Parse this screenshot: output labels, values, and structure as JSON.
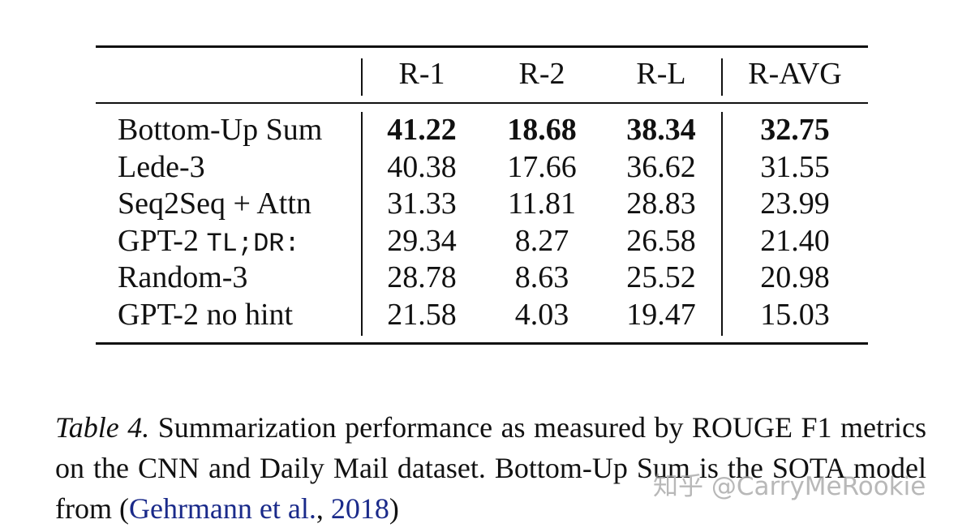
{
  "table": {
    "header": [
      "R-1",
      "R-2",
      "R-L",
      "R-AVG"
    ],
    "rows": [
      {
        "model": "Bottom-Up Sum",
        "scores": [
          "41.22",
          "18.68",
          "38.34",
          "32.75"
        ]
      },
      {
        "model": "Lede-3",
        "scores": [
          "40.38",
          "17.66",
          "36.62",
          "31.55"
        ]
      },
      {
        "model": "Seq2Seq + Attn",
        "scores": [
          "31.33",
          "11.81",
          "28.83",
          "23.99"
        ]
      },
      {
        "model": "GPT-2",
        "model_code": "TL;DR:",
        "scores": [
          "29.34",
          "8.27",
          "26.58",
          "21.40"
        ]
      },
      {
        "model": "Random-3",
        "scores": [
          "28.78",
          "8.63",
          "25.52",
          "20.98"
        ]
      },
      {
        "model": "GPT-2 no hint",
        "scores": [
          "21.58",
          "4.03",
          "19.47",
          "15.03"
        ]
      }
    ]
  },
  "caption": {
    "label": "Table 4.",
    "text": "Summarization performance as measured by ROUGE F1 metrics on the CNN and Daily Mail dataset. Bottom-Up Sum is the SOTA model from (",
    "citation_authors": "Gehrmann et al.",
    "citation_sep": ", ",
    "citation_year": "2018",
    "close": ")"
  },
  "watermark": "知乎 @CarryMeRookie"
}
